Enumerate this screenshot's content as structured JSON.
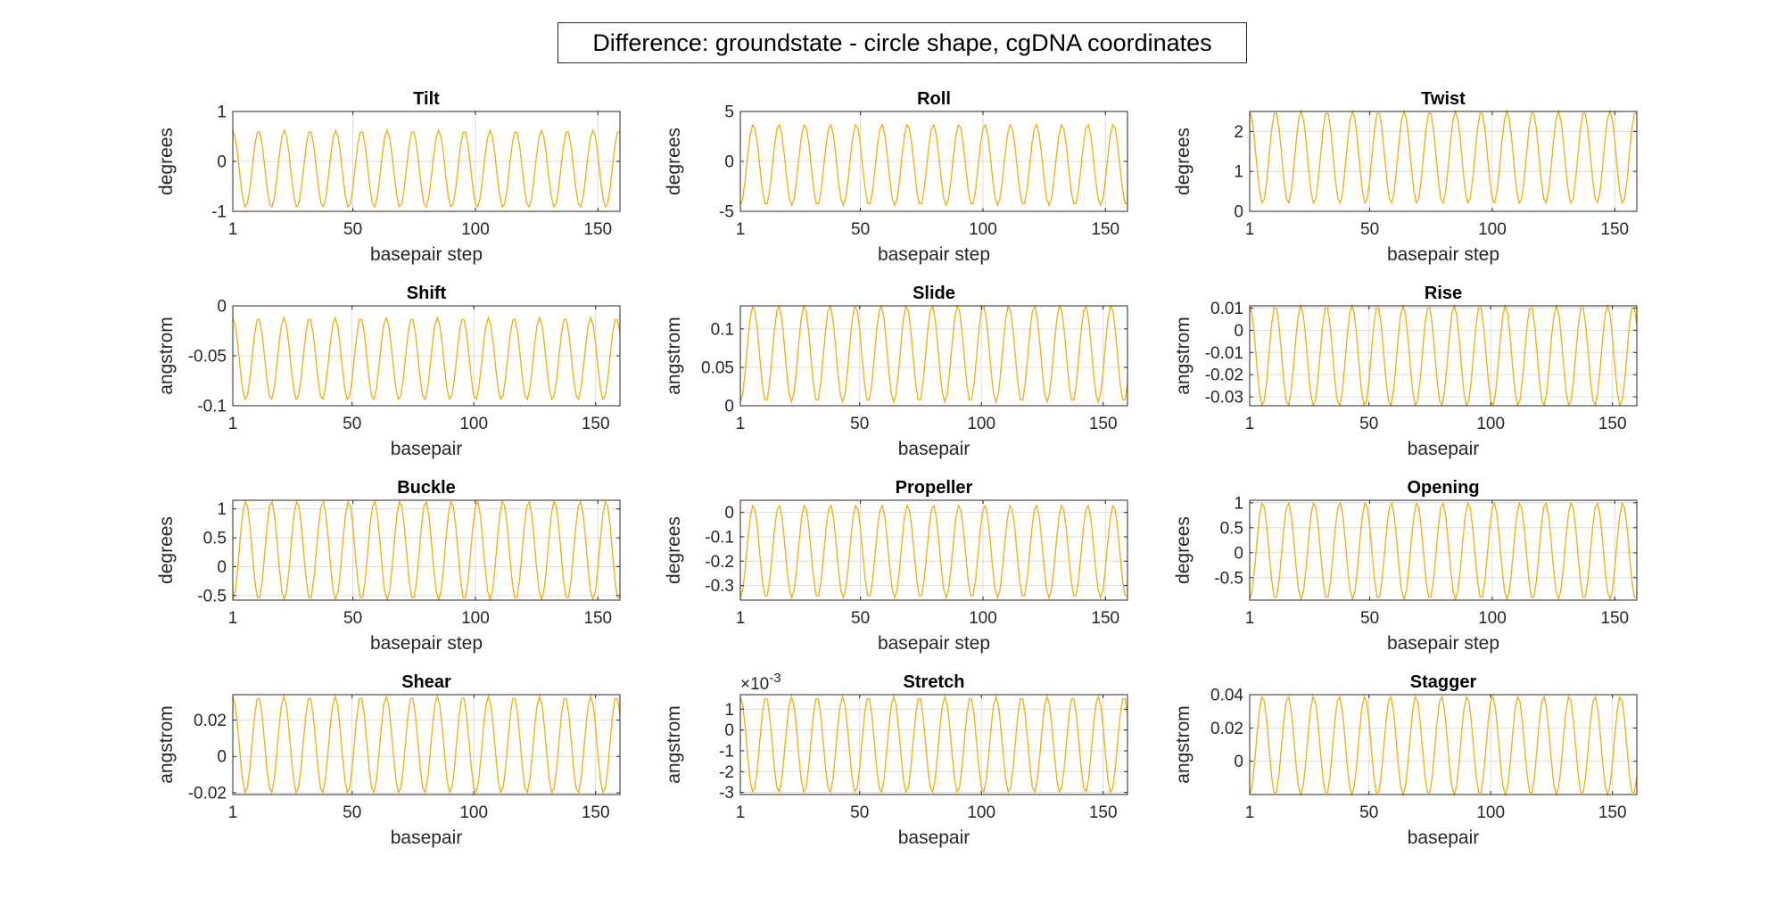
{
  "figure": {
    "title": "Difference: groundstate - circle shape, cgDNA coordinates"
  },
  "style": {
    "line_color": "#EDB120",
    "axis_color": "#262626",
    "grid_color": "#dcdcdc"
  },
  "chart_data": [
    {
      "type": "line",
      "title": "Tilt",
      "xlabel": "basepair step",
      "ylabel": "degrees",
      "xlim": [
        1,
        159
      ],
      "ylim": [
        -1,
        1
      ],
      "xticks": [
        1,
        50,
        100,
        150
      ],
      "xtick_labels": [
        "1",
        "50",
        "100",
        "150"
      ],
      "yticks": [
        -1,
        0,
        1
      ],
      "ytick_labels": [
        "-1",
        "0",
        "1"
      ],
      "exponent": "",
      "period": 10.5,
      "phase_deg": 90,
      "amp_min": -0.92,
      "amp_max": 0.62,
      "start": 1,
      "end": 159
    },
    {
      "type": "line",
      "title": "Roll",
      "xlabel": "basepair step",
      "ylabel": "degrees",
      "xlim": [
        1,
        159
      ],
      "ylim": [
        -5,
        5
      ],
      "xticks": [
        1,
        50,
        100,
        150
      ],
      "xtick_labels": [
        "1",
        "50",
        "100",
        "150"
      ],
      "yticks": [
        -5,
        0,
        5
      ],
      "ytick_labels": [
        "-5",
        "0",
        "5"
      ],
      "exponent": "",
      "period": 10.5,
      "phase_deg": -90,
      "amp_min": -4.4,
      "amp_max": 3.7,
      "start": 1,
      "end": 159
    },
    {
      "type": "line",
      "title": "Twist",
      "xlabel": "basepair step",
      "ylabel": "degrees",
      "xlim": [
        1,
        159
      ],
      "ylim": [
        0,
        2.5
      ],
      "xticks": [
        1,
        50,
        100,
        150
      ],
      "xtick_labels": [
        "1",
        "50",
        "100",
        "150"
      ],
      "yticks": [
        0,
        1,
        2
      ],
      "ytick_labels": [
        "0",
        "1",
        "2"
      ],
      "exponent": "",
      "period": 10.5,
      "phase_deg": 90,
      "amp_min": 0.2,
      "amp_max": 2.5,
      "start": 1,
      "end": 159
    },
    {
      "type": "line",
      "title": "Shift",
      "xlabel": "basepair",
      "ylabel": "angstrom",
      "xlim": [
        1,
        160
      ],
      "ylim": [
        -0.1,
        0
      ],
      "xticks": [
        1,
        50,
        100,
        150
      ],
      "xtick_labels": [
        "1",
        "50",
        "100",
        "150"
      ],
      "yticks": [
        -0.1,
        -0.05,
        0
      ],
      "ytick_labels": [
        "-0.1",
        "-0.05",
        "0"
      ],
      "exponent": "",
      "period": 10.5,
      "phase_deg": 90,
      "amp_min": -0.094,
      "amp_max": -0.012,
      "start": 1,
      "end": 160
    },
    {
      "type": "line",
      "title": "Slide",
      "xlabel": "basepair",
      "ylabel": "angstrom",
      "xlim": [
        1,
        160
      ],
      "ylim": [
        0,
        0.13
      ],
      "xticks": [
        1,
        50,
        100,
        150
      ],
      "xtick_labels": [
        "1",
        "50",
        "100",
        "150"
      ],
      "yticks": [
        0,
        0.05,
        0.1
      ],
      "ytick_labels": [
        "0",
        "0.05",
        "0.1"
      ],
      "exponent": "",
      "period": 10.5,
      "phase_deg": -90,
      "amp_min": 0.005,
      "amp_max": 0.13,
      "start": 1,
      "end": 160
    },
    {
      "type": "line",
      "title": "Rise",
      "xlabel": "basepair",
      "ylabel": "angstrom",
      "xlim": [
        1,
        160
      ],
      "ylim": [
        -0.034,
        0.011
      ],
      "xticks": [
        1,
        50,
        100,
        150
      ],
      "xtick_labels": [
        "1",
        "50",
        "100",
        "150"
      ],
      "yticks": [
        -0.03,
        -0.02,
        -0.01,
        0,
        0.01
      ],
      "ytick_labels": [
        "-0.03",
        "-0.02",
        "-0.01",
        "0",
        "0.01"
      ],
      "exponent": "",
      "period": 10.5,
      "phase_deg": 90,
      "amp_min": -0.034,
      "amp_max": 0.011,
      "start": 1,
      "end": 160
    },
    {
      "type": "line",
      "title": "Buckle",
      "xlabel": "basepair step",
      "ylabel": "degrees",
      "xlim": [
        1,
        159
      ],
      "ylim": [
        -0.58,
        1.15
      ],
      "xticks": [
        1,
        50,
        100,
        150
      ],
      "xtick_labels": [
        "1",
        "50",
        "100",
        "150"
      ],
      "yticks": [
        -0.5,
        0,
        0.5,
        1
      ],
      "ytick_labels": [
        "-0.5",
        "0",
        "0.5",
        "1"
      ],
      "exponent": "",
      "period": 10.5,
      "phase_deg": -90,
      "amp_min": -0.57,
      "amp_max": 1.13,
      "start": 1,
      "end": 159
    },
    {
      "type": "line",
      "title": "Propeller",
      "xlabel": "basepair step",
      "ylabel": "degrees",
      "xlim": [
        1,
        159
      ],
      "ylim": [
        -0.36,
        0.05
      ],
      "xticks": [
        1,
        50,
        100,
        150
      ],
      "xtick_labels": [
        "1",
        "50",
        "100",
        "150"
      ],
      "yticks": [
        -0.3,
        -0.2,
        -0.1,
        0
      ],
      "ytick_labels": [
        "-0.3",
        "-0.2",
        "-0.1",
        "0"
      ],
      "exponent": "",
      "period": 10.5,
      "phase_deg": -90,
      "amp_min": -0.35,
      "amp_max": 0.03,
      "start": 1,
      "end": 159
    },
    {
      "type": "line",
      "title": "Opening",
      "xlabel": "basepair step",
      "ylabel": "degrees",
      "xlim": [
        1,
        159
      ],
      "ylim": [
        -0.95,
        1.05
      ],
      "xticks": [
        1,
        50,
        100,
        150
      ],
      "xtick_labels": [
        "1",
        "50",
        "100",
        "150"
      ],
      "yticks": [
        -0.5,
        0,
        0.5,
        1
      ],
      "ytick_labels": [
        "-0.5",
        "0",
        "0.5",
        "1"
      ],
      "exponent": "",
      "period": 10.5,
      "phase_deg": -90,
      "amp_min": -0.93,
      "amp_max": 1.0,
      "start": 1,
      "end": 159
    },
    {
      "type": "line",
      "title": "Shear",
      "xlabel": "basepair",
      "ylabel": "angstrom",
      "xlim": [
        1,
        160
      ],
      "ylim": [
        -0.021,
        0.034
      ],
      "xticks": [
        1,
        50,
        100,
        150
      ],
      "xtick_labels": [
        "1",
        "50",
        "100",
        "150"
      ],
      "yticks": [
        -0.02,
        0,
        0.02
      ],
      "ytick_labels": [
        "-0.02",
        "0",
        "0.02"
      ],
      "exponent": "",
      "period": 10.5,
      "phase_deg": 90,
      "amp_min": -0.02,
      "amp_max": 0.033,
      "start": 1,
      "end": 160
    },
    {
      "type": "line",
      "title": "Stretch",
      "xlabel": "basepair",
      "ylabel": "angstrom",
      "xlim": [
        1,
        160
      ],
      "ylim": [
        -3.1,
        1.7
      ],
      "xticks": [
        1,
        50,
        100,
        150
      ],
      "xtick_labels": [
        "1",
        "50",
        "100",
        "150"
      ],
      "yticks": [
        -3,
        -2,
        -1,
        0,
        1
      ],
      "ytick_labels": [
        "-3",
        "-2",
        "-1",
        "0",
        "1"
      ],
      "exponent": "-3",
      "period": 10.5,
      "phase_deg": 90,
      "amp_min": -3.0,
      "amp_max": 1.6,
      "start": 1,
      "end": 160
    },
    {
      "type": "line",
      "title": "Stagger",
      "xlabel": "basepair",
      "ylabel": "angstrom",
      "xlim": [
        1,
        160
      ],
      "ylim": [
        -0.02,
        0.04
      ],
      "xticks": [
        1,
        50,
        100,
        150
      ],
      "xtick_labels": [
        "1",
        "50",
        "100",
        "150"
      ],
      "yticks": [
        0,
        0.02,
        0.04
      ],
      "ytick_labels": [
        "0",
        "0.02",
        "0.04"
      ],
      "exponent": "",
      "period": 10.5,
      "phase_deg": -90,
      "amp_min": -0.02,
      "amp_max": 0.039,
      "start": 1,
      "end": 160
    }
  ]
}
